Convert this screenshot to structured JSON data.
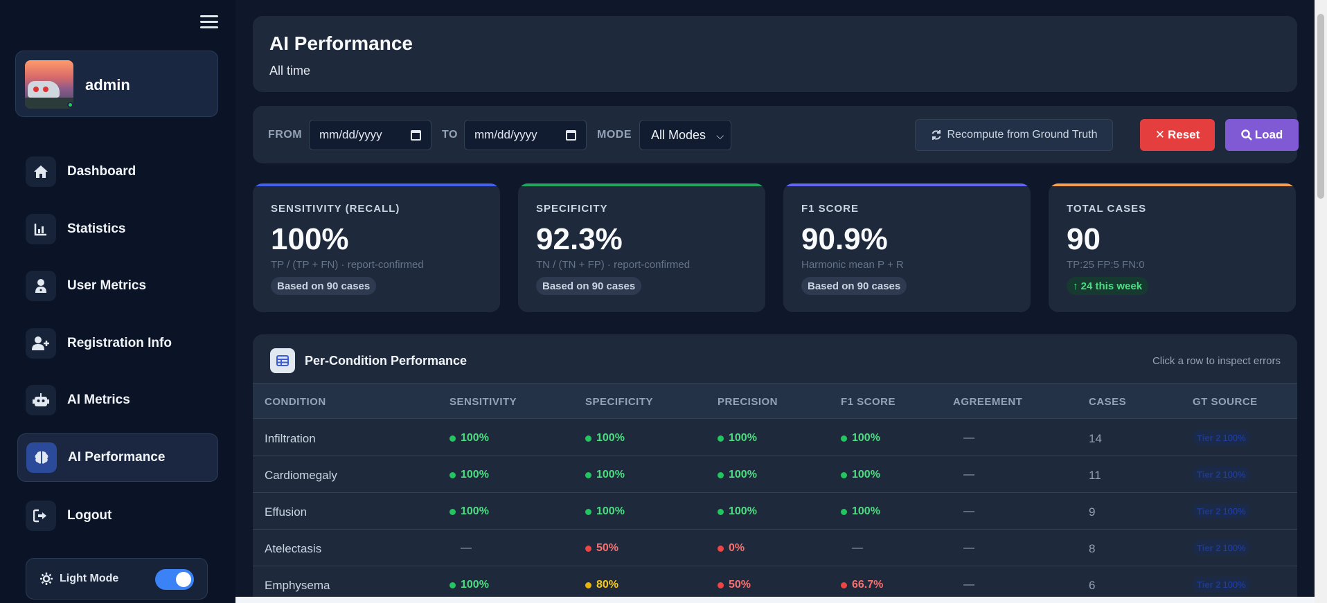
{
  "sidebar": {
    "user_name": "admin",
    "items": [
      {
        "label": "Dashboard",
        "icon": "home-icon"
      },
      {
        "label": "Statistics",
        "icon": "bar-chart-icon"
      },
      {
        "label": "User Metrics",
        "icon": "user-doctor-icon"
      },
      {
        "label": "Registration Info",
        "icon": "user-plus-icon"
      },
      {
        "label": "AI Metrics",
        "icon": "robot-icon"
      },
      {
        "label": "AI Performance",
        "icon": "brain-icon",
        "active": true
      },
      {
        "label": "Logout",
        "icon": "logout-icon"
      }
    ],
    "theme_label": "Light Mode"
  },
  "header": {
    "title": "AI Performance",
    "subtitle": "All time"
  },
  "filters": {
    "from_label": "FROM",
    "to_label": "TO",
    "mode_label": "MODE",
    "from_placeholder": "mm/dd/yyyy",
    "to_placeholder": "mm/dd/yyyy",
    "mode_value": "All Modes",
    "recompute_label": "Recompute from Ground Truth",
    "reset_label": "Reset",
    "load_label": "Load"
  },
  "stats": [
    {
      "label": "SENSITIVITY (RECALL)",
      "value": "100%",
      "desc": "TP / (TP + FN) · report-confirmed",
      "badge": "Based on 90 cases",
      "accent": "#4361ee"
    },
    {
      "label": "SPECIFICITY",
      "value": "92.3%",
      "desc": "TN / (TN + FP) · report-confirmed",
      "badge": "Based on 90 cases",
      "accent": "#22a55e"
    },
    {
      "label": "F1 SCORE",
      "value": "90.9%",
      "desc": "Harmonic mean P + R",
      "badge": "Based on 90 cases",
      "accent": "#6366f1"
    },
    {
      "label": "TOTAL CASES",
      "value": "90",
      "desc": "TP:25 FP:5 FN:0",
      "badge": "↑ 24 this week",
      "accent": "#f6a04d"
    }
  ],
  "table": {
    "title": "Per-Condition Performance",
    "hint": "Click a row to inspect errors",
    "columns": [
      "CONDITION",
      "SENSITIVITY",
      "SPECIFICITY",
      "PRECISION",
      "F1 SCORE",
      "AGREEMENT",
      "CASES",
      "GT SOURCE"
    ],
    "tier_label": "Tier 2",
    "tier_pct": "100%",
    "rows": [
      {
        "condition": "Infiltration",
        "sensitivity": "100%",
        "specificity": "100%",
        "precision": "100%",
        "f1": "100%",
        "agreement": "—",
        "cases": "14",
        "s": "g",
        "sp": "g",
        "p": "g",
        "f": "g"
      },
      {
        "condition": "Cardiomegaly",
        "sensitivity": "100%",
        "specificity": "100%",
        "precision": "100%",
        "f1": "100%",
        "agreement": "—",
        "cases": "11",
        "s": "g",
        "sp": "g",
        "p": "g",
        "f": "g"
      },
      {
        "condition": "Effusion",
        "sensitivity": "100%",
        "specificity": "100%",
        "precision": "100%",
        "f1": "100%",
        "agreement": "—",
        "cases": "9",
        "s": "g",
        "sp": "g",
        "p": "g",
        "f": "g"
      },
      {
        "condition": "Atelectasis",
        "sensitivity": "—",
        "specificity": "50%",
        "precision": "0%",
        "f1": "—",
        "agreement": "—",
        "cases": "8",
        "s": "n",
        "sp": "r",
        "p": "r",
        "f": "n"
      },
      {
        "condition": "Emphysema",
        "sensitivity": "100%",
        "specificity": "80%",
        "precision": "50%",
        "f1": "66.7%",
        "agreement": "—",
        "cases": "6",
        "s": "g",
        "sp": "y",
        "p": "r",
        "f": "r"
      }
    ]
  }
}
